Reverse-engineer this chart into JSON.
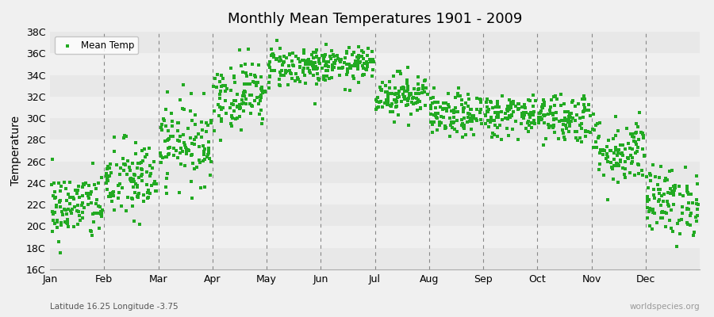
{
  "title": "Monthly Mean Temperatures 1901 - 2009",
  "ylabel": "Temperature",
  "subtitle_left": "Latitude 16.25 Longitude -3.75",
  "subtitle_right": "worldspecies.org",
  "marker": "s",
  "marker_color": "#22aa22",
  "marker_size": 3,
  "ylim": [
    16,
    38
  ],
  "ytick_labels": [
    "16C",
    "18C",
    "20C",
    "22C",
    "24C",
    "26C",
    "28C",
    "30C",
    "32C",
    "34C",
    "36C",
    "38C"
  ],
  "ytick_values": [
    16,
    18,
    20,
    22,
    24,
    26,
    28,
    30,
    32,
    34,
    36,
    38
  ],
  "months": [
    "Jan",
    "Feb",
    "Mar",
    "Apr",
    "May",
    "Jun",
    "Jul",
    "Aug",
    "Sep",
    "Oct",
    "Nov",
    "Dec"
  ],
  "background_color": "#f0f0f0",
  "band_colors": [
    "#e8e8e8",
    "#f0f0f0"
  ],
  "legend_label": "Mean Temp",
  "mean_temps": [
    21.8,
    24.2,
    27.8,
    32.2,
    34.8,
    34.9,
    32.2,
    30.2,
    30.3,
    30.1,
    27.0,
    22.3
  ],
  "std_temps": [
    1.6,
    1.9,
    1.9,
    1.6,
    1.0,
    0.8,
    1.0,
    1.0,
    1.0,
    1.2,
    1.6,
    1.6
  ],
  "years": 109,
  "figwidth": 9.0,
  "figheight": 4.0,
  "dpi": 100
}
